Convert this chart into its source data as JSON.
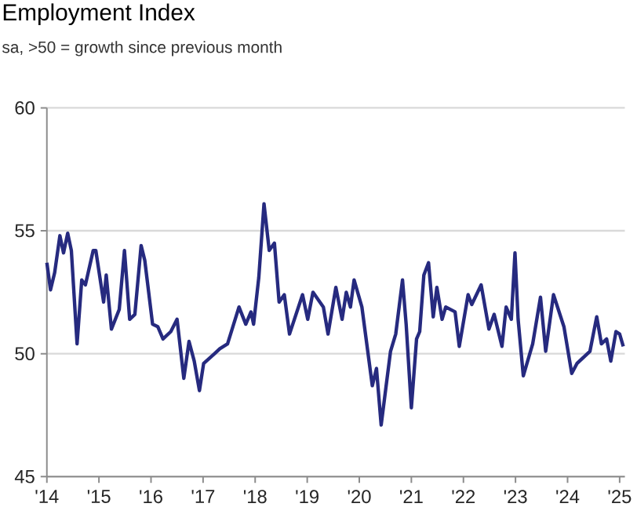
{
  "chart_data": {
    "type": "line",
    "title": "Employment Index",
    "subtitle": "sa, >50 = growth since previous month",
    "x": [
      2014.0,
      2014.07,
      2014.15,
      2014.25,
      2014.32,
      2014.4,
      2014.47,
      2014.58,
      2014.67,
      2014.74,
      2014.89,
      2014.94,
      2015.09,
      2015.14,
      2015.24,
      2015.39,
      2015.49,
      2015.59,
      2015.69,
      2015.81,
      2015.88,
      2016.03,
      2016.13,
      2016.23,
      2016.38,
      2016.5,
      2016.63,
      2016.73,
      2016.83,
      2016.93,
      2017.01,
      2017.22,
      2017.32,
      2017.47,
      2017.69,
      2017.82,
      2017.92,
      2017.97,
      2018.07,
      2018.17,
      2018.27,
      2018.37,
      2018.46,
      2018.56,
      2018.66,
      2018.91,
      2019.01,
      2019.11,
      2019.31,
      2019.4,
      2019.55,
      2019.67,
      2019.75,
      2019.83,
      2019.9,
      2020.05,
      2020.25,
      2020.33,
      2020.42,
      2020.6,
      2020.7,
      2020.83,
      2020.9,
      2021.0,
      2021.1,
      2021.16,
      2021.24,
      2021.33,
      2021.42,
      2021.49,
      2021.59,
      2021.66,
      2021.84,
      2021.92,
      2022.09,
      2022.16,
      2022.34,
      2022.49,
      2022.59,
      2022.74,
      2022.82,
      2022.92,
      2022.99,
      2023.05,
      2023.15,
      2023.33,
      2023.48,
      2023.58,
      2023.73,
      2023.93,
      2024.08,
      2024.18,
      2024.43,
      2024.56,
      2024.65,
      2024.75,
      2024.83,
      2024.93,
      2025.0,
      2025.07
    ],
    "values": [
      53.7,
      52.6,
      53.3,
      54.8,
      54.1,
      54.9,
      54.2,
      50.4,
      53.0,
      52.8,
      54.2,
      54.2,
      52.1,
      53.2,
      51.0,
      51.8,
      54.2,
      51.4,
      51.6,
      54.4,
      53.8,
      51.2,
      51.1,
      50.6,
      50.9,
      51.4,
      49.0,
      50.5,
      49.7,
      48.5,
      49.6,
      50.0,
      50.2,
      50.4,
      51.9,
      51.2,
      51.7,
      51.2,
      53.1,
      56.1,
      54.2,
      54.5,
      52.1,
      52.4,
      50.8,
      52.4,
      51.4,
      52.5,
      51.9,
      50.8,
      52.7,
      51.4,
      52.5,
      51.9,
      53.0,
      51.9,
      48.7,
      49.4,
      47.1,
      50.1,
      50.8,
      53.0,
      51.2,
      47.8,
      50.6,
      50.9,
      53.2,
      53.7,
      51.5,
      52.7,
      51.4,
      51.9,
      51.7,
      50.3,
      52.4,
      52.0,
      52.8,
      51.0,
      51.6,
      50.3,
      51.9,
      51.4,
      54.1,
      51.4,
      49.1,
      50.4,
      52.3,
      50.1,
      52.4,
      51.1,
      49.2,
      49.6,
      50.1,
      51.5,
      50.4,
      50.6,
      49.7,
      50.9,
      50.8,
      50.3
    ],
    "color": "#262a7f",
    "xlim": [
      2014,
      2025.1
    ],
    "ylim": [
      45,
      60
    ],
    "xticks": [
      {
        "value": 2014,
        "label": "'14"
      },
      {
        "value": 2015,
        "label": "'15"
      },
      {
        "value": 2016,
        "label": "'16"
      },
      {
        "value": 2017,
        "label": "'17"
      },
      {
        "value": 2018,
        "label": "'18"
      },
      {
        "value": 2019,
        "label": "'19"
      },
      {
        "value": 2020,
        "label": "'20"
      },
      {
        "value": 2021,
        "label": "'21"
      },
      {
        "value": 2022,
        "label": "'22"
      },
      {
        "value": 2023,
        "label": "'23"
      },
      {
        "value": 2024,
        "label": "'24"
      },
      {
        "value": 2025,
        "label": "'25"
      }
    ],
    "yticks": [
      45,
      50,
      55,
      60
    ],
    "grid": "y"
  }
}
